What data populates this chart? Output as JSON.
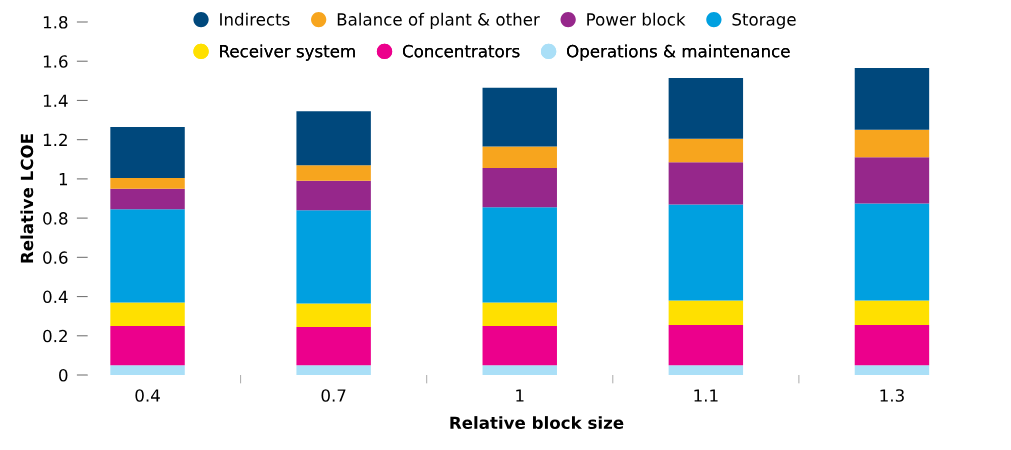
{
  "chart_data": {
    "type": "bar",
    "stacked": true,
    "xlabel": "Relative block size",
    "ylabel": "Relative LCOE",
    "categories": [
      "0.4",
      "0.7",
      "1",
      "1.1",
      "1.3"
    ],
    "series": [
      {
        "name": "Operations & maintenance",
        "color": "#aadff7",
        "values": [
          0.05,
          0.05,
          0.05,
          0.05,
          0.05
        ]
      },
      {
        "name": "Concentrators",
        "color": "#ec008c",
        "values": [
          0.2,
          0.195,
          0.2,
          0.205,
          0.205
        ]
      },
      {
        "name": "Receiver system",
        "color": "#ffe000",
        "values": [
          0.12,
          0.12,
          0.12,
          0.125,
          0.125
        ]
      },
      {
        "name": "Storage",
        "color": "#00a0e0",
        "values": [
          0.475,
          0.475,
          0.485,
          0.49,
          0.495
        ]
      },
      {
        "name": "Power block",
        "color": "#96278b",
        "values": [
          0.105,
          0.15,
          0.2,
          0.215,
          0.235
        ]
      },
      {
        "name": "Balance of plant & other",
        "color": "#f7a51e",
        "values": [
          0.055,
          0.08,
          0.11,
          0.12,
          0.14
        ]
      },
      {
        "name": "Indirects",
        "color": "#00487c",
        "values": [
          0.26,
          0.275,
          0.3,
          0.31,
          0.315
        ]
      }
    ],
    "ylim": [
      0,
      1.8
    ],
    "yticks": [
      0,
      0.2,
      0.4,
      0.6,
      0.8,
      1,
      1.2,
      1.4,
      1.6,
      1.8
    ],
    "grid": false,
    "legend": "top"
  }
}
